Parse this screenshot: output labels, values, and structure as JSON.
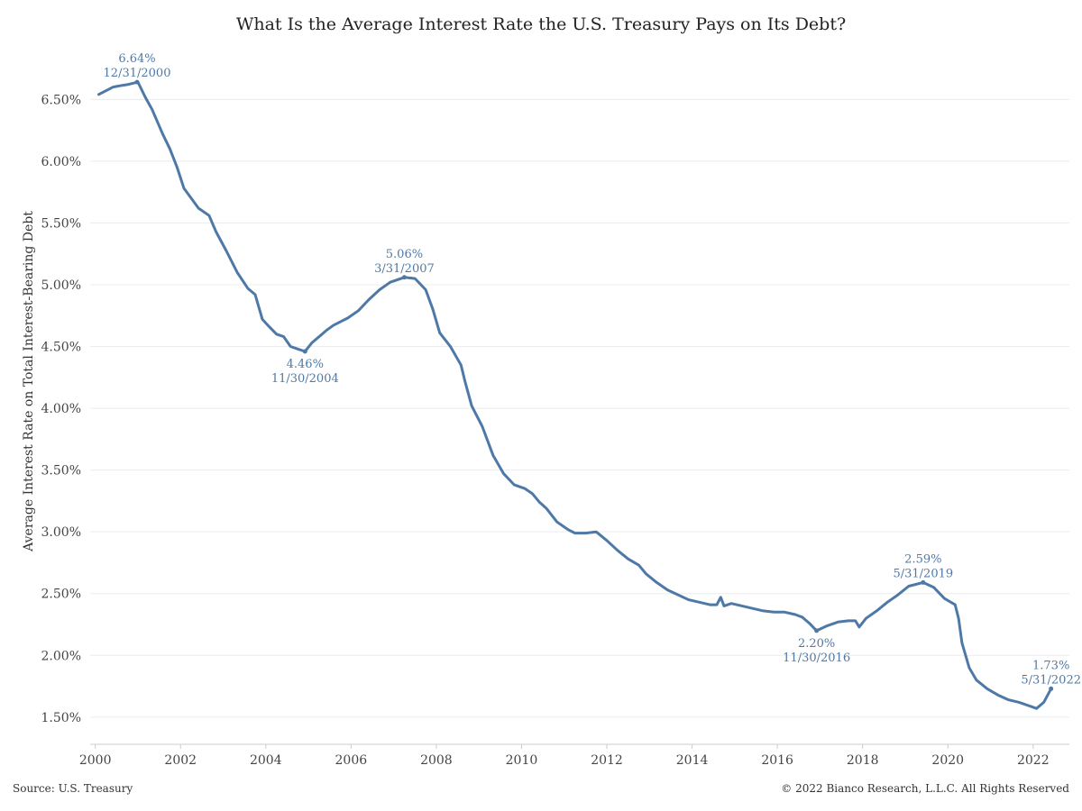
{
  "footer": {
    "source": "Source: U.S. Treasury",
    "copyright": "© 2022 Bianco Research, L.L.C. All Rights Reserved"
  },
  "chart_data": {
    "type": "line",
    "title": "What Is the Average Interest Rate the U.S. Treasury Pays on Its Debt?",
    "xlabel": "",
    "ylabel": "Average Interest Rate on Total Interest-Bearing Debt",
    "xlim": [
      1999.88,
      2022.85
    ],
    "ylim": [
      1.28,
      6.94
    ],
    "x_ticks": [
      2000,
      2002,
      2004,
      2006,
      2008,
      2010,
      2012,
      2014,
      2016,
      2018,
      2020,
      2022
    ],
    "x_tick_labels": [
      "2000",
      "2002",
      "2004",
      "2006",
      "2008",
      "2010",
      "2012",
      "2014",
      "2016",
      "2018",
      "2020",
      "2022"
    ],
    "y_ticks": [
      1.5,
      2.0,
      2.5,
      3.0,
      3.5,
      4.0,
      4.5,
      5.0,
      5.5,
      6.0,
      6.5
    ],
    "y_tick_labels": [
      "1.50%",
      "2.00%",
      "2.50%",
      "3.00%",
      "3.50%",
      "4.00%",
      "4.50%",
      "5.00%",
      "5.50%",
      "6.00%",
      "6.50%"
    ],
    "grid": {
      "horizontal": true,
      "vertical": false
    },
    "line_color": "#4e79a7",
    "series": [
      {
        "points": [
          [
            2000.08,
            6.54
          ],
          [
            2000.25,
            6.57
          ],
          [
            2000.42,
            6.6
          ],
          [
            2000.58,
            6.61
          ],
          [
            2000.75,
            6.62
          ],
          [
            2001.0,
            6.64
          ],
          [
            2001.17,
            6.52
          ],
          [
            2001.33,
            6.42
          ],
          [
            2001.58,
            6.22
          ],
          [
            2001.75,
            6.1
          ],
          [
            2001.92,
            5.95
          ],
          [
            2002.08,
            5.78
          ],
          [
            2002.25,
            5.7
          ],
          [
            2002.42,
            5.62
          ],
          [
            2002.67,
            5.56
          ],
          [
            2002.83,
            5.43
          ],
          [
            2003.08,
            5.27
          ],
          [
            2003.33,
            5.1
          ],
          [
            2003.58,
            4.97
          ],
          [
            2003.75,
            4.92
          ],
          [
            2003.92,
            4.72
          ],
          [
            2004.08,
            4.66
          ],
          [
            2004.25,
            4.6
          ],
          [
            2004.42,
            4.58
          ],
          [
            2004.58,
            4.5
          ],
          [
            2004.75,
            4.48
          ],
          [
            2004.92,
            4.46
          ],
          [
            2005.08,
            4.53
          ],
          [
            2005.25,
            4.58
          ],
          [
            2005.42,
            4.63
          ],
          [
            2005.58,
            4.67
          ],
          [
            2005.75,
            4.7
          ],
          [
            2005.92,
            4.73
          ],
          [
            2006.17,
            4.79
          ],
          [
            2006.42,
            4.88
          ],
          [
            2006.67,
            4.96
          ],
          [
            2006.92,
            5.02
          ],
          [
            2007.25,
            5.06
          ],
          [
            2007.5,
            5.05
          ],
          [
            2007.75,
            4.96
          ],
          [
            2007.92,
            4.8
          ],
          [
            2008.08,
            4.61
          ],
          [
            2008.33,
            4.5
          ],
          [
            2008.58,
            4.35
          ],
          [
            2008.67,
            4.22
          ],
          [
            2008.83,
            4.02
          ],
          [
            2009.08,
            3.85
          ],
          [
            2009.33,
            3.62
          ],
          [
            2009.58,
            3.47
          ],
          [
            2009.83,
            3.38
          ],
          [
            2010.08,
            3.35
          ],
          [
            2010.25,
            3.31
          ],
          [
            2010.42,
            3.24
          ],
          [
            2010.58,
            3.19
          ],
          [
            2010.83,
            3.08
          ],
          [
            2011.08,
            3.02
          ],
          [
            2011.25,
            2.99
          ],
          [
            2011.5,
            2.99
          ],
          [
            2011.75,
            3.0
          ],
          [
            2012.0,
            2.93
          ],
          [
            2012.25,
            2.85
          ],
          [
            2012.5,
            2.78
          ],
          [
            2012.75,
            2.73
          ],
          [
            2012.92,
            2.66
          ],
          [
            2013.17,
            2.59
          ],
          [
            2013.42,
            2.53
          ],
          [
            2013.67,
            2.49
          ],
          [
            2013.92,
            2.45
          ],
          [
            2014.17,
            2.43
          ],
          [
            2014.42,
            2.41
          ],
          [
            2014.58,
            2.41
          ],
          [
            2014.67,
            2.47
          ],
          [
            2014.75,
            2.4
          ],
          [
            2014.92,
            2.42
          ],
          [
            2015.17,
            2.4
          ],
          [
            2015.42,
            2.38
          ],
          [
            2015.67,
            2.36
          ],
          [
            2015.92,
            2.35
          ],
          [
            2016.17,
            2.35
          ],
          [
            2016.42,
            2.33
          ],
          [
            2016.58,
            2.31
          ],
          [
            2016.75,
            2.26
          ],
          [
            2016.92,
            2.2
          ],
          [
            2017.17,
            2.24
          ],
          [
            2017.42,
            2.27
          ],
          [
            2017.67,
            2.28
          ],
          [
            2017.83,
            2.28
          ],
          [
            2017.92,
            2.23
          ],
          [
            2018.08,
            2.3
          ],
          [
            2018.33,
            2.36
          ],
          [
            2018.58,
            2.43
          ],
          [
            2018.83,
            2.49
          ],
          [
            2019.08,
            2.56
          ],
          [
            2019.42,
            2.59
          ],
          [
            2019.67,
            2.55
          ],
          [
            2019.92,
            2.46
          ],
          [
            2020.17,
            2.41
          ],
          [
            2020.25,
            2.3
          ],
          [
            2020.33,
            2.1
          ],
          [
            2020.5,
            1.9
          ],
          [
            2020.67,
            1.8
          ],
          [
            2020.92,
            1.73
          ],
          [
            2021.17,
            1.68
          ],
          [
            2021.42,
            1.64
          ],
          [
            2021.67,
            1.62
          ],
          [
            2021.92,
            1.59
          ],
          [
            2022.08,
            1.57
          ],
          [
            2022.25,
            1.62
          ],
          [
            2022.42,
            1.73
          ]
        ]
      }
    ],
    "annotations": [
      {
        "x": 2000.98,
        "y": 6.64,
        "value": "6.64%",
        "date": "12/31/2000",
        "pos": "above"
      },
      {
        "x": 2004.92,
        "y": 4.46,
        "value": "4.46%",
        "date": "11/30/2004",
        "pos": "below"
      },
      {
        "x": 2007.25,
        "y": 5.06,
        "value": "5.06%",
        "date": "3/31/2007",
        "pos": "above"
      },
      {
        "x": 2016.92,
        "y": 2.2,
        "value": "2.20%",
        "date": "11/30/2016",
        "pos": "below"
      },
      {
        "x": 2019.42,
        "y": 2.59,
        "value": "2.59%",
        "date": "5/31/2019",
        "pos": "above"
      },
      {
        "x": 2022.42,
        "y": 1.73,
        "value": "1.73%",
        "date": "5/31/2022",
        "pos": "above"
      }
    ]
  }
}
